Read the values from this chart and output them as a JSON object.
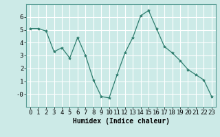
{
  "x": [
    0,
    1,
    2,
    3,
    4,
    5,
    6,
    7,
    8,
    9,
    10,
    11,
    12,
    13,
    14,
    15,
    16,
    17,
    18,
    19,
    20,
    21,
    22,
    23
  ],
  "y": [
    5.1,
    5.1,
    4.9,
    3.3,
    3.6,
    2.8,
    4.4,
    3.0,
    1.1,
    -0.2,
    -0.3,
    1.5,
    3.2,
    4.4,
    6.1,
    6.5,
    5.1,
    3.7,
    3.2,
    2.6,
    1.9,
    1.5,
    1.1,
    -0.2
  ],
  "line_color": "#2e7d6e",
  "marker": "*",
  "marker_size": 3,
  "bg_color": "#cceae7",
  "grid_color": "#ffffff",
  "xlabel": "Humidex (Indice chaleur)",
  "xlim": [
    -0.5,
    23.5
  ],
  "ylim": [
    -1.0,
    7.0
  ],
  "ytick_labels": [
    "-0",
    "1",
    "2",
    "3",
    "4",
    "5",
    "6"
  ],
  "ytick_vals": [
    0,
    1,
    2,
    3,
    4,
    5,
    6
  ],
  "xticks": [
    0,
    1,
    2,
    3,
    4,
    5,
    6,
    7,
    8,
    9,
    10,
    11,
    12,
    13,
    14,
    15,
    16,
    17,
    18,
    19,
    20,
    21,
    22,
    23
  ],
  "label_fontsize": 7,
  "tick_fontsize": 6.5
}
